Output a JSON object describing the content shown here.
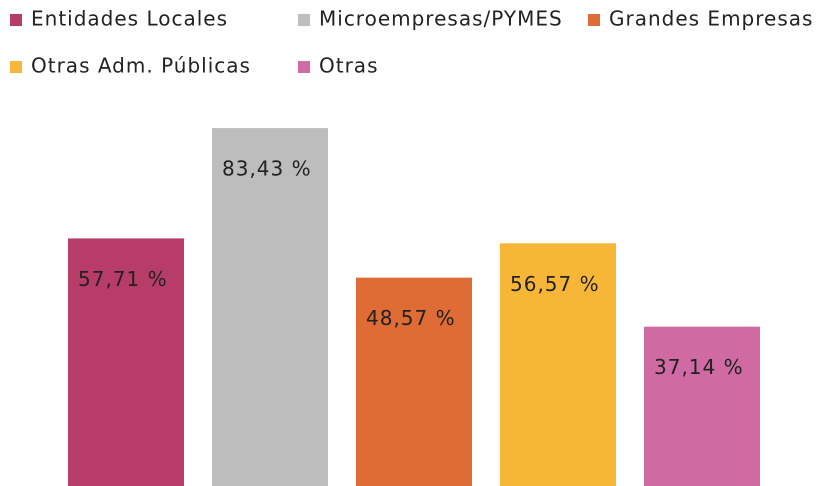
{
  "chart_data": {
    "type": "bar",
    "categories": [
      "Entidades Locales",
      "Microempresas/PYMES",
      "Grandes Empresas",
      "Otras Adm. Públicas",
      "Otras"
    ],
    "values": [
      57.71,
      83.43,
      48.57,
      56.57,
      37.14
    ],
    "value_labels": [
      "57,71 %",
      "83,43 %",
      "48,57 %",
      "56,57 %",
      "37,14 %"
    ],
    "colors": [
      "#b83c68",
      "#bdbdbd",
      "#df6b35",
      "#f8b638",
      "#cf6aa3"
    ],
    "legend": "top"
  }
}
